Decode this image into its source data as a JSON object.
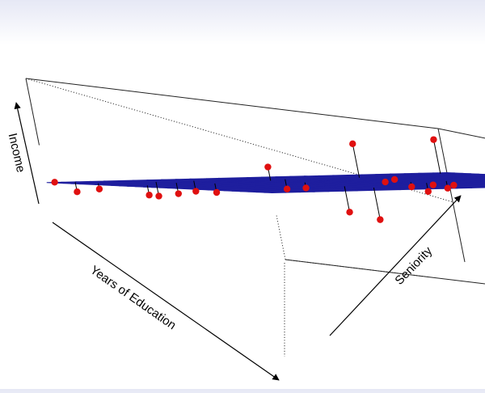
{
  "chart_data": {
    "type": "scatter",
    "subtype": "3d-regression-plane",
    "title": "",
    "xlabel": "Years of Education",
    "ylabel": "Seniority",
    "zlabel": "Income",
    "xlim": [
      0,
      1
    ],
    "ylim": [
      0,
      1
    ],
    "zlim": [
      0,
      1
    ],
    "plane": {
      "description": "fitted least-squares plane",
      "intercept": 0.22,
      "slope_x": 0.28,
      "slope_y": 0.45,
      "grid_lines": 28,
      "fill_color": "#F2D34A",
      "line_color": "#1E1E9E"
    },
    "points": [
      {
        "x": 0.02,
        "y": 0.06,
        "z": 0.18
      },
      {
        "x": 0.0,
        "y": 0.02,
        "z": 0.23
      },
      {
        "x": 0.14,
        "y": 0.05,
        "z": 0.24
      },
      {
        "x": 0.13,
        "y": 0.2,
        "z": 0.24
      },
      {
        "x": 0.12,
        "y": 0.3,
        "z": 0.31
      },
      {
        "x": 0.22,
        "y": 0.2,
        "z": 0.29
      },
      {
        "x": 0.32,
        "y": 0.24,
        "z": 0.35
      },
      {
        "x": 0.34,
        "y": 0.06,
        "z": 0.27
      },
      {
        "x": 0.4,
        "y": 0.42,
        "z": 0.48
      },
      {
        "x": 0.23,
        "y": 0.43,
        "z": 0.58
      },
      {
        "x": 0.17,
        "y": 0.5,
        "z": 0.42
      },
      {
        "x": 0.18,
        "y": 0.68,
        "z": 0.83
      },
      {
        "x": 0.7,
        "y": 0.35,
        "z": 0.38
      },
      {
        "x": 0.83,
        "y": 0.35,
        "z": 0.37
      },
      {
        "x": 0.53,
        "y": 0.7,
        "z": 0.63
      },
      {
        "x": 0.48,
        "y": 0.6,
        "z": 0.64
      },
      {
        "x": 0.4,
        "y": 0.62,
        "z": 0.6
      },
      {
        "x": 0.55,
        "y": 0.6,
        "z": 0.61
      },
      {
        "x": 0.62,
        "y": 0.6,
        "z": 0.6
      },
      {
        "x": 0.74,
        "y": 0.6,
        "z": 0.69
      },
      {
        "x": 0.72,
        "y": 0.56,
        "z": 0.67
      },
      {
        "x": 0.86,
        "y": 0.64,
        "z": 0.67
      },
      {
        "x": 0.68,
        "y": 0.77,
        "z": 0.83
      },
      {
        "x": 0.6,
        "y": 0.88,
        "z": 0.89
      },
      {
        "x": 0.76,
        "y": 0.87,
        "z": 0.92
      },
      {
        "x": 0.74,
        "y": 0.91,
        "z": 0.94
      },
      {
        "x": 0.84,
        "y": 0.86,
        "z": 0.92
      },
      {
        "x": 0.88,
        "y": 0.82,
        "z": 0.86
      },
      {
        "x": 0.92,
        "y": 0.96,
        "z": 0.97
      },
      {
        "x": 0.06,
        "y": 0.95,
        "z": 0.92
      }
    ],
    "point_color": "#E01010",
    "grid": false,
    "legend": "none"
  }
}
